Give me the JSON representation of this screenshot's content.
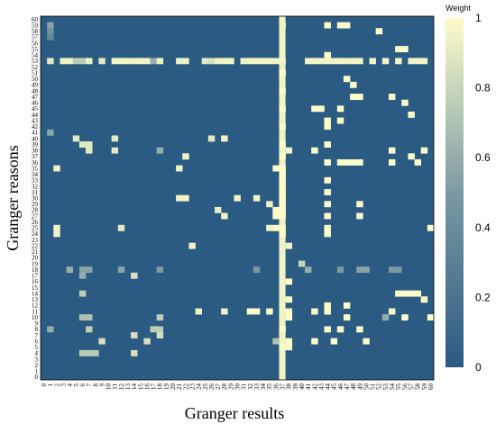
{
  "chart_data": {
    "type": "heatmap",
    "xlabel": "Granger results",
    "ylabel": "Granger reasons",
    "x_range": [
      0,
      60
    ],
    "y_range": [
      0,
      60
    ],
    "colorbar": {
      "title": "Weight",
      "range": [
        0,
        1
      ],
      "ticks": [
        "0",
        "0.2",
        "0.4",
        "0.6",
        "0.8",
        "1"
      ],
      "low_color": "#2b5a82",
      "high_color": "#fdfdca"
    },
    "background_value": 0,
    "cells": [
      {
        "x": 1,
        "y": 59,
        "v": 0.55
      },
      {
        "x": 1,
        "y": 58,
        "v": 0.45
      },
      {
        "x": 1,
        "y": 57,
        "v": 0.35
      },
      {
        "x": 37,
        "y": 59,
        "v": 0.95
      },
      {
        "x": 44,
        "y": 59,
        "v": 1
      },
      {
        "x": 46,
        "y": 59,
        "v": 1
      },
      {
        "x": 47,
        "y": 59,
        "v": 1
      },
      {
        "x": 52,
        "y": 58,
        "v": 1
      },
      {
        "x": 44,
        "y": 54,
        "v": 1
      },
      {
        "x": 55,
        "y": 55,
        "v": 1
      },
      {
        "x": 56,
        "y": 55,
        "v": 1
      },
      {
        "x": 1,
        "y": 53,
        "v": 0.9
      },
      {
        "x": 3,
        "y": 53,
        "v": 0.95
      },
      {
        "x": 4,
        "y": 53,
        "v": 0.95
      },
      {
        "x": 5,
        "y": 53,
        "v": 0.75
      },
      {
        "x": 6,
        "y": 53,
        "v": 0.75
      },
      {
        "x": 7,
        "y": 53,
        "v": 0.95
      },
      {
        "x": 9,
        "y": 53,
        "v": 0.9
      },
      {
        "x": 11,
        "y": 53,
        "v": 0.95
      },
      {
        "x": 12,
        "y": 53,
        "v": 0.95
      },
      {
        "x": 13,
        "y": 53,
        "v": 0.95
      },
      {
        "x": 14,
        "y": 53,
        "v": 0.95
      },
      {
        "x": 15,
        "y": 53,
        "v": 0.95
      },
      {
        "x": 16,
        "y": 53,
        "v": 0.95
      },
      {
        "x": 17,
        "y": 53,
        "v": 0.6
      },
      {
        "x": 18,
        "y": 53,
        "v": 0.95
      },
      {
        "x": 21,
        "y": 53,
        "v": 0.95
      },
      {
        "x": 22,
        "y": 53,
        "v": 0.95
      },
      {
        "x": 25,
        "y": 53,
        "v": 0.9
      },
      {
        "x": 26,
        "y": 53,
        "v": 0.85
      },
      {
        "x": 27,
        "y": 53,
        "v": 0.95
      },
      {
        "x": 28,
        "y": 53,
        "v": 0.95
      },
      {
        "x": 29,
        "y": 53,
        "v": 0.95
      },
      {
        "x": 31,
        "y": 53,
        "v": 0.95
      },
      {
        "x": 32,
        "y": 53,
        "v": 0.95
      },
      {
        "x": 33,
        "y": 53,
        "v": 0.95
      },
      {
        "x": 34,
        "y": 53,
        "v": 0.95
      },
      {
        "x": 35,
        "y": 53,
        "v": 0.95
      },
      {
        "x": 36,
        "y": 53,
        "v": 0.95
      },
      {
        "x": 37,
        "y": 53,
        "v": 0.95
      },
      {
        "x": 41,
        "y": 53,
        "v": 0.95
      },
      {
        "x": 42,
        "y": 53,
        "v": 0.95
      },
      {
        "x": 43,
        "y": 53,
        "v": 0.95
      },
      {
        "x": 44,
        "y": 53,
        "v": 0.95
      },
      {
        "x": 45,
        "y": 53,
        "v": 0.95
      },
      {
        "x": 46,
        "y": 53,
        "v": 0.95
      },
      {
        "x": 47,
        "y": 53,
        "v": 0.95
      },
      {
        "x": 48,
        "y": 53,
        "v": 0.95
      },
      {
        "x": 49,
        "y": 53,
        "v": 0.95
      },
      {
        "x": 51,
        "y": 53,
        "v": 0.95
      },
      {
        "x": 53,
        "y": 53,
        "v": 0.95
      },
      {
        "x": 55,
        "y": 53,
        "v": 0.95
      },
      {
        "x": 57,
        "y": 53,
        "v": 0.95
      },
      {
        "x": 58,
        "y": 53,
        "v": 0.95
      },
      {
        "x": 59,
        "y": 53,
        "v": 0.95
      },
      {
        "x": 37,
        "y": 51,
        "v": 1
      },
      {
        "x": 47,
        "y": 50,
        "v": 1
      },
      {
        "x": 48,
        "y": 49,
        "v": 1
      },
      {
        "x": 37,
        "y": 48,
        "v": 1
      },
      {
        "x": 48,
        "y": 47,
        "v": 1
      },
      {
        "x": 49,
        "y": 47,
        "v": 1
      },
      {
        "x": 54,
        "y": 47,
        "v": 1
      },
      {
        "x": 56,
        "y": 46,
        "v": 1
      },
      {
        "x": 37,
        "y": 45,
        "v": 1
      },
      {
        "x": 42,
        "y": 45,
        "v": 1
      },
      {
        "x": 43,
        "y": 45,
        "v": 1
      },
      {
        "x": 46,
        "y": 45,
        "v": 1
      },
      {
        "x": 57,
        "y": 44,
        "v": 1
      },
      {
        "x": 44,
        "y": 43,
        "v": 1
      },
      {
        "x": 46,
        "y": 43,
        "v": 1
      },
      {
        "x": 37,
        "y": 42,
        "v": 1
      },
      {
        "x": 44,
        "y": 42,
        "v": 1
      },
      {
        "x": 1,
        "y": 41,
        "v": 0.55
      },
      {
        "x": 5,
        "y": 40,
        "v": 0.9
      },
      {
        "x": 11,
        "y": 40,
        "v": 0.9
      },
      {
        "x": 26,
        "y": 40,
        "v": 0.9
      },
      {
        "x": 28,
        "y": 40,
        "v": 0.95
      },
      {
        "x": 6,
        "y": 39,
        "v": 0.9
      },
      {
        "x": 7,
        "y": 39,
        "v": 0.9
      },
      {
        "x": 37,
        "y": 39,
        "v": 1
      },
      {
        "x": 44,
        "y": 39,
        "v": 1
      },
      {
        "x": 7,
        "y": 38,
        "v": 0.9
      },
      {
        "x": 11,
        "y": 38,
        "v": 0.9
      },
      {
        "x": 18,
        "y": 38,
        "v": 0.6
      },
      {
        "x": 38,
        "y": 38,
        "v": 0.95
      },
      {
        "x": 42,
        "y": 38,
        "v": 1
      },
      {
        "x": 54,
        "y": 38,
        "v": 1
      },
      {
        "x": 59,
        "y": 38,
        "v": 1
      },
      {
        "x": 22,
        "y": 37,
        "v": 0.95
      },
      {
        "x": 37,
        "y": 37,
        "v": 1
      },
      {
        "x": 57,
        "y": 37,
        "v": 1
      },
      {
        "x": 44,
        "y": 36,
        "v": 1
      },
      {
        "x": 46,
        "y": 36,
        "v": 1
      },
      {
        "x": 47,
        "y": 36,
        "v": 1
      },
      {
        "x": 48,
        "y": 36,
        "v": 1
      },
      {
        "x": 49,
        "y": 36,
        "v": 1
      },
      {
        "x": 54,
        "y": 36,
        "v": 1
      },
      {
        "x": 58,
        "y": 36,
        "v": 1
      },
      {
        "x": 2,
        "y": 35,
        "v": 0.95
      },
      {
        "x": 21,
        "y": 35,
        "v": 0.95
      },
      {
        "x": 36,
        "y": 35,
        "v": 1
      },
      {
        "x": 37,
        "y": 35,
        "v": 1
      },
      {
        "x": 37,
        "y": 34,
        "v": 1
      },
      {
        "x": 37,
        "y": 33,
        "v": 1
      },
      {
        "x": 44,
        "y": 33,
        "v": 1
      },
      {
        "x": 37,
        "y": 32,
        "v": 1
      },
      {
        "x": 37,
        "y": 31,
        "v": 1
      },
      {
        "x": 44,
        "y": 31,
        "v": 1
      },
      {
        "x": 21,
        "y": 30,
        "v": 0.95
      },
      {
        "x": 22,
        "y": 30,
        "v": 0.95
      },
      {
        "x": 30,
        "y": 30,
        "v": 0.95
      },
      {
        "x": 33,
        "y": 30,
        "v": 0.95
      },
      {
        "x": 37,
        "y": 30,
        "v": 1
      },
      {
        "x": 35,
        "y": 29,
        "v": 0.95
      },
      {
        "x": 37,
        "y": 29,
        "v": 1
      },
      {
        "x": 44,
        "y": 29,
        "v": 1
      },
      {
        "x": 49,
        "y": 29,
        "v": 1
      },
      {
        "x": 27,
        "y": 28,
        "v": 0.9
      },
      {
        "x": 36,
        "y": 28,
        "v": 1
      },
      {
        "x": 37,
        "y": 28,
        "v": 1
      },
      {
        "x": 28,
        "y": 27,
        "v": 0.95
      },
      {
        "x": 36,
        "y": 27,
        "v": 1
      },
      {
        "x": 37,
        "y": 27,
        "v": 1
      },
      {
        "x": 44,
        "y": 27,
        "v": 1
      },
      {
        "x": 49,
        "y": 27,
        "v": 1
      },
      {
        "x": 35,
        "y": 25,
        "v": 0.95
      },
      {
        "x": 36,
        "y": 25,
        "v": 1
      },
      {
        "x": 2,
        "y": 25,
        "v": 0.95
      },
      {
        "x": 12,
        "y": 25,
        "v": 0.9
      },
      {
        "x": 37,
        "y": 25,
        "v": 1
      },
      {
        "x": 44,
        "y": 25,
        "v": 1
      },
      {
        "x": 60,
        "y": 25,
        "v": 1
      },
      {
        "x": 2,
        "y": 24,
        "v": 0.95
      },
      {
        "x": 37,
        "y": 24,
        "v": 1
      },
      {
        "x": 44,
        "y": 24,
        "v": 1
      },
      {
        "x": 23,
        "y": 22,
        "v": 0.95
      },
      {
        "x": 38,
        "y": 22,
        "v": 0.95
      },
      {
        "x": 40,
        "y": 19,
        "v": 0.8
      },
      {
        "x": 4,
        "y": 18,
        "v": 0.6
      },
      {
        "x": 6,
        "y": 18,
        "v": 0.55
      },
      {
        "x": 7,
        "y": 18,
        "v": 0.55
      },
      {
        "x": 12,
        "y": 18,
        "v": 0.55
      },
      {
        "x": 18,
        "y": 18,
        "v": 0.5
      },
      {
        "x": 33,
        "y": 18,
        "v": 0.5
      },
      {
        "x": 41,
        "y": 18,
        "v": 0.6
      },
      {
        "x": 46,
        "y": 18,
        "v": 0.5
      },
      {
        "x": 49,
        "y": 18,
        "v": 0.55
      },
      {
        "x": 50,
        "y": 18,
        "v": 0.55
      },
      {
        "x": 54,
        "y": 18,
        "v": 0.5
      },
      {
        "x": 55,
        "y": 18,
        "v": 0.5
      },
      {
        "x": 6,
        "y": 17,
        "v": 0.6
      },
      {
        "x": 14,
        "y": 17,
        "v": 0.85
      },
      {
        "x": 38,
        "y": 16,
        "v": 1
      },
      {
        "x": 6,
        "y": 14,
        "v": 0.75
      },
      {
        "x": 55,
        "y": 14,
        "v": 1
      },
      {
        "x": 56,
        "y": 14,
        "v": 1
      },
      {
        "x": 57,
        "y": 14,
        "v": 1
      },
      {
        "x": 58,
        "y": 14,
        "v": 1
      },
      {
        "x": 59,
        "y": 13,
        "v": 1
      },
      {
        "x": 38,
        "y": 13,
        "v": 1
      },
      {
        "x": 44,
        "y": 12,
        "v": 1
      },
      {
        "x": 47,
        "y": 12,
        "v": 1
      },
      {
        "x": 24,
        "y": 11,
        "v": 0.95
      },
      {
        "x": 28,
        "y": 11,
        "v": 0.95
      },
      {
        "x": 32,
        "y": 11,
        "v": 1
      },
      {
        "x": 33,
        "y": 11,
        "v": 1
      },
      {
        "x": 35,
        "y": 11,
        "v": 1
      },
      {
        "x": 38,
        "y": 11,
        "v": 1
      },
      {
        "x": 42,
        "y": 11,
        "v": 1
      },
      {
        "x": 44,
        "y": 11,
        "v": 1
      },
      {
        "x": 54,
        "y": 11,
        "v": 1
      },
      {
        "x": 6,
        "y": 10,
        "v": 0.7
      },
      {
        "x": 7,
        "y": 10,
        "v": 0.7
      },
      {
        "x": 18,
        "y": 10,
        "v": 0.75
      },
      {
        "x": 38,
        "y": 10,
        "v": 1
      },
      {
        "x": 47,
        "y": 10,
        "v": 1
      },
      {
        "x": 53,
        "y": 10,
        "v": 0.6
      },
      {
        "x": 56,
        "y": 10,
        "v": 1
      },
      {
        "x": 60,
        "y": 10,
        "v": 1
      },
      {
        "x": 1,
        "y": 8,
        "v": 0.6
      },
      {
        "x": 7,
        "y": 8,
        "v": 0.75
      },
      {
        "x": 17,
        "y": 8,
        "v": 0.75
      },
      {
        "x": 18,
        "y": 8,
        "v": 0.75
      },
      {
        "x": 37,
        "y": 8,
        "v": 1
      },
      {
        "x": 44,
        "y": 8,
        "v": 1
      },
      {
        "x": 46,
        "y": 8,
        "v": 1
      },
      {
        "x": 49,
        "y": 8,
        "v": 1
      },
      {
        "x": 14,
        "y": 7,
        "v": 0.85
      },
      {
        "x": 18,
        "y": 7,
        "v": 0.85
      },
      {
        "x": 36,
        "y": 6,
        "v": 0.7
      },
      {
        "x": 38,
        "y": 6,
        "v": 1
      },
      {
        "x": 42,
        "y": 6,
        "v": 1
      },
      {
        "x": 45,
        "y": 6,
        "v": 1
      },
      {
        "x": 50,
        "y": 6,
        "v": 1
      },
      {
        "x": 9,
        "y": 6,
        "v": 0.85
      },
      {
        "x": 16,
        "y": 6,
        "v": 0.85
      },
      {
        "x": 37,
        "y": 5,
        "v": 1
      },
      {
        "x": 38,
        "y": 5,
        "v": 1
      },
      {
        "x": 6,
        "y": 4,
        "v": 0.75
      },
      {
        "x": 7,
        "y": 4,
        "v": 0.75
      },
      {
        "x": 8,
        "y": 4,
        "v": 0.75
      },
      {
        "x": 14,
        "y": 4,
        "v": 0.85
      }
    ],
    "column_runs": [
      {
        "x": 37,
        "y_from": 0,
        "y_to": 60,
        "v": 0.95
      }
    ]
  }
}
